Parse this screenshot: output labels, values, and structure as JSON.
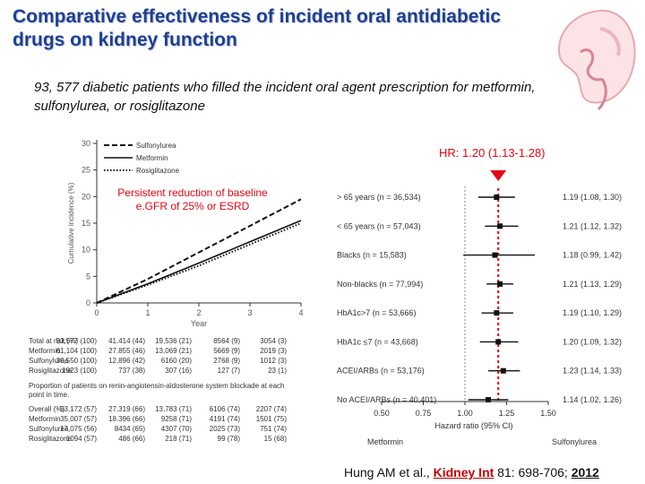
{
  "title": "Comparative effectiveness of incident oral antidiabetic drugs on kidney function",
  "subtitle": "93, 577 diabetic patients who filled the incident oral agent prescription for metformin, sulfonylurea, or rosiglitazone",
  "colors": {
    "title": "#1f3f8f",
    "accent_red": "#e30613",
    "journal_red": "#c00000"
  },
  "annotation": {
    "hr_label": "HR: 1.20 (1.13-1.28)",
    "outcome_note": "Persistent reduction of baseline e.GFR of 25% or ESRD"
  },
  "reference": {
    "authors": "Hung AM et al.,",
    "journal": "Kidney Int",
    "volume_pages": "81: 698-706;",
    "year": "2012"
  },
  "icons": {
    "logo": "kidney-icon"
  },
  "chart_data": [
    {
      "type": "line",
      "xlabel": "Year",
      "ylabel": "Cumulative incidence (%)",
      "x_ticks": [
        "0",
        "1",
        "2",
        "3",
        "4"
      ],
      "y_ticks": [
        "0",
        "5",
        "10",
        "15",
        "20",
        "25",
        "30"
      ],
      "ylim": [
        0,
        30
      ],
      "xlim": [
        0,
        4
      ],
      "legend": [
        "Sulfonylurea",
        "Metformin",
        "Rosiglitazone"
      ],
      "series": [
        {
          "name": "Sulfonylurea",
          "style": "dashed",
          "x": [
            0,
            1,
            2,
            3,
            4
          ],
          "values": [
            0,
            4.5,
            9.5,
            14.5,
            19.5
          ]
        },
        {
          "name": "Metformin",
          "style": "solid",
          "x": [
            0,
            1,
            2,
            3,
            4
          ],
          "values": [
            0,
            3.6,
            7.5,
            11.5,
            15.5
          ]
        },
        {
          "name": "Rosiglitazone",
          "style": "dotted",
          "x": [
            0,
            1,
            2,
            3,
            4
          ],
          "values": [
            0,
            3.4,
            7.0,
            11.0,
            15.0
          ]
        }
      ],
      "risk_table": {
        "header": "Total at risk (%)",
        "rows": [
          {
            "label": "Total at risk (%)",
            "cells": [
              "93,577 (100)",
              "41.414 (44)",
              "19,536 (21)",
              "8564 (9)",
              "3054 (3)"
            ]
          },
          {
            "label": "Metformin",
            "cells": [
              "61,104 (100)",
              "27.855 (46)",
              "13,069 (21)",
              "5669 (9)",
              "2019 (3)"
            ]
          },
          {
            "label": "Sulfonylurea",
            "cells": [
              "30,550 (100)",
              "12,896 (42)",
              "6160 (20)",
              "2768 (9)",
              "1012 (3)"
            ]
          },
          {
            "label": "Rosiglitazone",
            "cells": [
              "1923 (100)",
              "737 (38)",
              "307 (16)",
              "127 (7)",
              "23 (1)"
            ]
          }
        ]
      },
      "proportion_table": {
        "caption": "Proportion of patients on renin-angiotensin-aldosterone system blockade at each point in time.",
        "rows": [
          {
            "label": "Overall (%)",
            "cells": [
              "53,172 (57)",
              "27,319 (66)",
              "13,783 (71)",
              "6106 (74)",
              "2207 (74)"
            ]
          },
          {
            "label": "Metformin",
            "cells": [
              "35,007 (57)",
              "18.396 (66)",
              "9258 (71)",
              "4191 (74)",
              "1501 (75)"
            ]
          },
          {
            "label": "Sulfonylurea",
            "cells": [
              "17,075 (56)",
              "8434 (65)",
              "4307 (70)",
              "2025 (73)",
              "751 (74)"
            ]
          },
          {
            "label": "Rosiglitazone",
            "cells": [
              "1094 (57)",
              "486 (66)",
              "218 (71)",
              "99 (78)",
              "15 (68)"
            ]
          }
        ]
      }
    },
    {
      "type": "forest",
      "xlabel": "Hazard ratio (95% CI)",
      "x_ticks": [
        "0.50",
        "0.75",
        "1.00",
        "1.25",
        "1.50"
      ],
      "xlim": [
        0.5,
        1.5
      ],
      "overall_hr": 1.2,
      "left_label": "Metformin",
      "right_label": "Sulfonylurea",
      "subgroups": [
        {
          "label": "> 65 years (n = 36,534)",
          "hr": 1.19,
          "lo": 1.08,
          "hi": 1.3,
          "text": "1.19 (1.08, 1.30)"
        },
        {
          "label": "< 65 years (n = 57,043)",
          "hr": 1.21,
          "lo": 1.12,
          "hi": 1.32,
          "text": "1.21 (1.12, 1.32)"
        },
        {
          "label": "Blacks (n = 15,583)",
          "hr": 1.18,
          "lo": 0.99,
          "hi": 1.42,
          "text": "1.18 (0.99, 1.42)"
        },
        {
          "label": "Non-blacks (n = 77,994)",
          "hr": 1.21,
          "lo": 1.13,
          "hi": 1.29,
          "text": "1.21 (1.13, 1.29)"
        },
        {
          "label": "HbA1c>7 (n = 53,666)",
          "hr": 1.19,
          "lo": 1.1,
          "hi": 1.29,
          "text": "1.19 (1.10, 1.29)"
        },
        {
          "label": "HbA1c ≤7 (n = 43,668)",
          "hr": 1.2,
          "lo": 1.09,
          "hi": 1.32,
          "text": "1.20 (1.09, 1.32)"
        },
        {
          "label": "ACEI/ARBs (n = 53,176)",
          "hr": 1.23,
          "lo": 1.14,
          "hi": 1.33,
          "text": "1.23 (1.14, 1.33)"
        },
        {
          "label": "No ACEI/ARBs (n = 40,401)",
          "hr": 1.14,
          "lo": 1.02,
          "hi": 1.26,
          "text": "1.14 (1.02, 1.26)"
        }
      ]
    }
  ]
}
